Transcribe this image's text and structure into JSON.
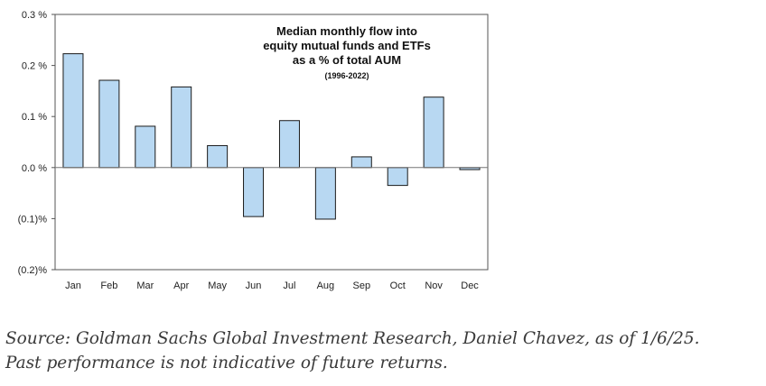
{
  "chart_data": {
    "type": "bar",
    "title_lines": [
      "Median monthly flow into",
      "equity mutual funds and ETFs",
      "as a % of total AUM"
    ],
    "subtitle": "(1996-2022)",
    "categories": [
      "Jan",
      "Feb",
      "Mar",
      "Apr",
      "May",
      "Jun",
      "Jul",
      "Aug",
      "Sep",
      "Oct",
      "Nov",
      "Dec"
    ],
    "values": [
      0.223,
      0.171,
      0.081,
      0.158,
      0.043,
      -0.096,
      0.092,
      -0.101,
      0.021,
      -0.035,
      0.138,
      -0.004
    ],
    "ylim": [
      -0.2,
      0.3
    ],
    "yticks": [
      0.3,
      0.2,
      0.1,
      0.0,
      -0.1,
      -0.2
    ],
    "ytick_labels": [
      "0.3 %",
      "0.2 %",
      "0.1 %",
      "0.0 %",
      "(0.1)%",
      "(0.2)%"
    ],
    "bar_color": "#b8d8f2",
    "bar_edge_color": "#1a1a1a",
    "grid": false,
    "legend": "none"
  },
  "source": {
    "line1": "Source: Goldman Sachs Global Investment Research, Daniel Chavez,  as of 1/6/25.",
    "line2": "Past performance is not indicative of future returns."
  }
}
